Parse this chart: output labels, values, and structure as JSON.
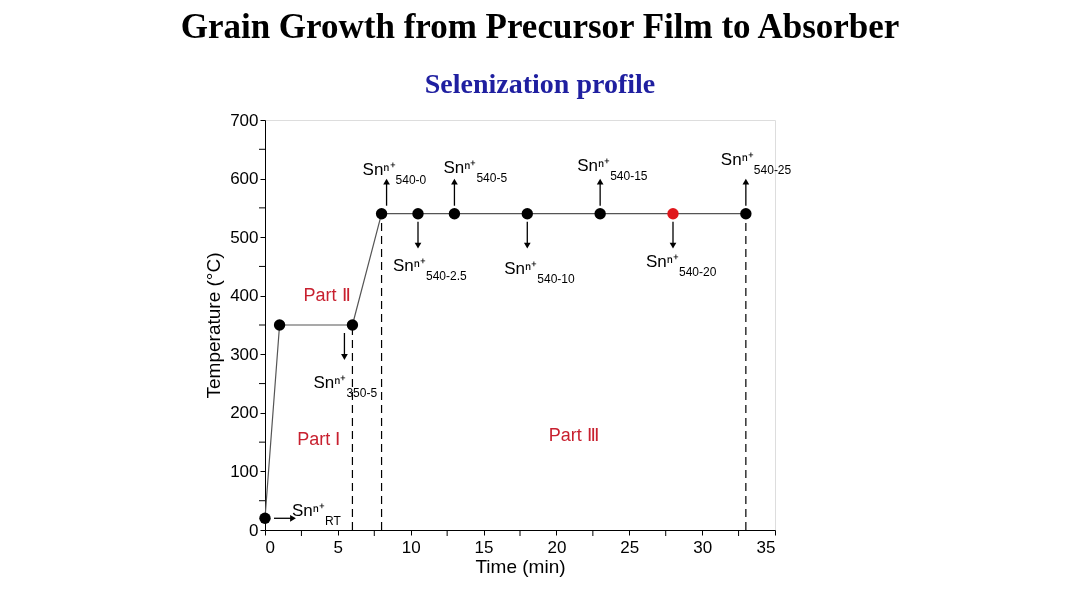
{
  "chart_data": {
    "type": "line",
    "title": "Grain Growth from Precursor Film to Absorber",
    "subtitle": "Selenization profile",
    "xlabel": "Time (min)",
    "ylabel": "Temperature (°C)",
    "x": [
      0,
      1,
      6,
      8,
      10.5,
      13,
      18,
      23,
      28,
      33
    ],
    "series": [
      {
        "color": "#555555",
        "colors": [
          "#000000",
          "#000000",
          "#000000",
          "#000000",
          "#000000",
          "#000000",
          "#000000",
          "#000000",
          "#e0161b",
          "#000000"
        ],
        "values": [
          20,
          350,
          350,
          540,
          540,
          540,
          540,
          540,
          540,
          540
        ]
      }
    ],
    "marker": "circle",
    "line_style": "solid",
    "grid": false,
    "xlim": [
      0,
      35
    ],
    "ylim": [
      0,
      700
    ],
    "xticks": [
      0,
      {
        "value": 2.5,
        "label": null
      },
      5,
      {
        "value": 7.5,
        "label": null
      },
      10,
      {
        "value": 12.5,
        "label": null
      },
      15,
      {
        "value": 17.5,
        "label": null
      },
      20,
      {
        "value": 22.5,
        "label": null
      },
      25,
      {
        "value": 27.5,
        "label": null
      },
      30,
      {
        "value": 32.5,
        "label": null
      },
      35
    ],
    "yticks": [
      0,
      {
        "value": 50,
        "label": null
      },
      100,
      {
        "value": 150,
        "label": null
      },
      200,
      {
        "value": 250,
        "label": null
      },
      300,
      {
        "value": 350,
        "label": null
      },
      400,
      {
        "value": 450,
        "label": null
      },
      500,
      {
        "value": 550,
        "label": null
      },
      600,
      {
        "value": 650,
        "label": null
      },
      700
    ],
    "ref_lines": [
      {
        "axis": "x",
        "value": 6,
        "color": "#000000",
        "line_style": "dashed"
      },
      {
        "axis": "x",
        "value": 8,
        "color": "#000000",
        "line_style": "dashed"
      },
      {
        "axis": "x",
        "value": 33,
        "color": "#000000",
        "line_style": "dashed"
      }
    ],
    "annotations": [
      {
        "text": "Snⁿ⁺$_{RT}$",
        "x": 0,
        "y": 20
      },
      {
        "text": "Snⁿ⁺$_{350-5}$",
        "x": 6,
        "y": 350
      },
      {
        "text": "Snⁿ⁺$_{540-0}$",
        "x": 8,
        "y": 540
      },
      {
        "text": "Snⁿ⁺$_{540-2.5}$",
        "x": 10.5,
        "y": 540
      },
      {
        "text": "Snⁿ⁺$_{540-5}$",
        "x": 13,
        "y": 540
      },
      {
        "text": "Snⁿ⁺$_{540-10}$",
        "x": 18,
        "y": 540
      },
      {
        "text": "Snⁿ⁺$_{540-15}$",
        "x": 23,
        "y": 540
      },
      {
        "text": "Snⁿ⁺$_{540-20}$",
        "x": 28,
        "y": 540
      },
      {
        "text": "Snⁿ⁺$_{540-25}$",
        "x": 33,
        "y": 540
      },
      "Part Ⅰ",
      "Part Ⅱ",
      "Part Ⅲ"
    ]
  }
}
